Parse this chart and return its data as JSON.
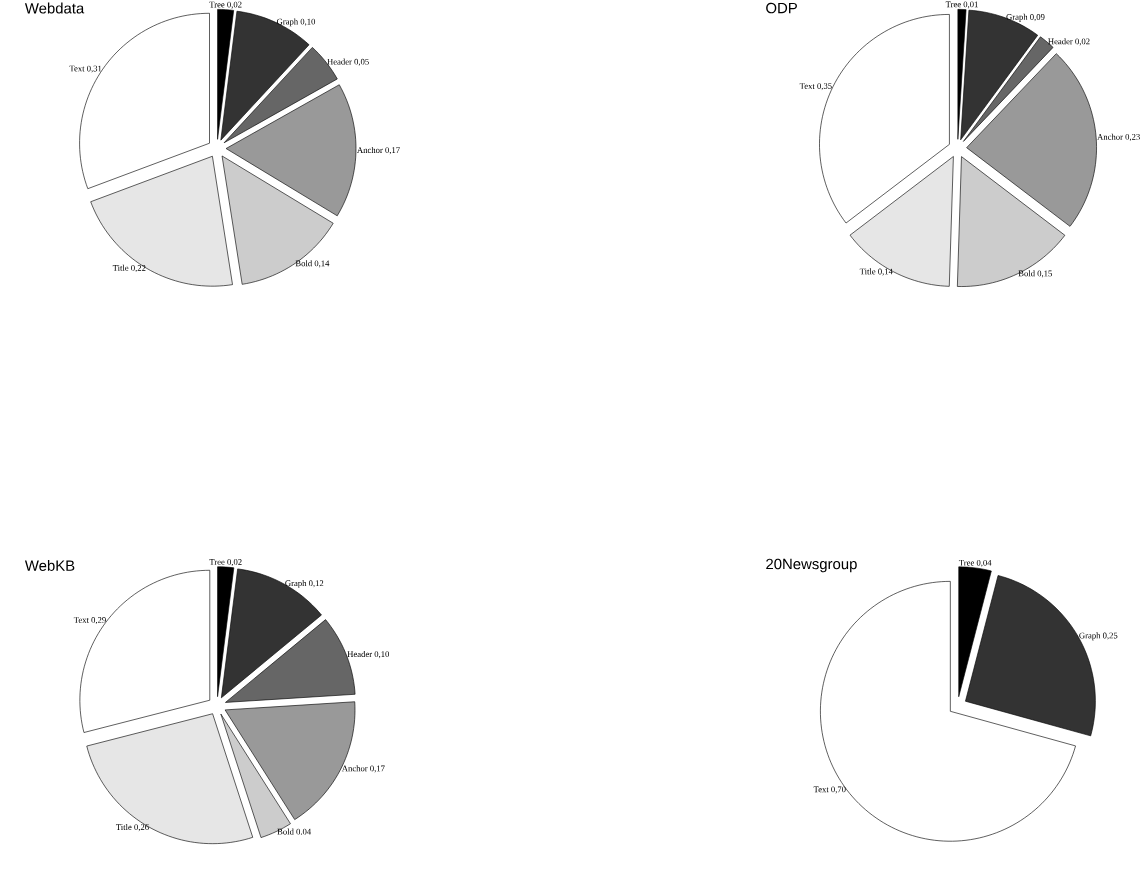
{
  "chart_data": [
    {
      "type": "pie",
      "title": "Webdata",
      "categories": [
        "Tree",
        "Graph",
        "Header",
        "Anchor",
        "Bold",
        "Title",
        "Text"
      ],
      "values": [
        0.02,
        0.1,
        0.05,
        0.17,
        0.14,
        0.22,
        0.31
      ],
      "value_labels": [
        "0,02",
        "0,10",
        "0,05",
        "0,17",
        "0,14",
        "0,22",
        "0,31"
      ],
      "colors": [
        "#000000",
        "#333333",
        "#666666",
        "#999999",
        "#cccccc",
        "#e6e6e6",
        "#ffffff"
      ]
    },
    {
      "type": "pie",
      "title": "ODP",
      "categories": [
        "Tree",
        "Graph",
        "Header",
        "Anchor",
        "Bold",
        "Title",
        "Text"
      ],
      "values": [
        0.01,
        0.09,
        0.02,
        0.23,
        0.15,
        0.14,
        0.35
      ],
      "value_labels": [
        "0,01",
        "0,09",
        "0,02",
        "0,23",
        "0,15",
        "0,14",
        "0,35"
      ],
      "colors": [
        "#000000",
        "#333333",
        "#666666",
        "#999999",
        "#cccccc",
        "#e6e6e6",
        "#ffffff"
      ]
    },
    {
      "type": "pie",
      "title": "WebKB",
      "categories": [
        "Tree",
        "Graph",
        "Header",
        "Anchor",
        "Bold",
        "Title",
        "Text"
      ],
      "values": [
        0.02,
        0.12,
        0.1,
        0.17,
        0.04,
        0.26,
        0.29
      ],
      "value_labels": [
        "0,02",
        "0,12",
        "0,10",
        "0,17",
        "0.04",
        "0,26",
        "0,29"
      ],
      "colors": [
        "#000000",
        "#333333",
        "#666666",
        "#999999",
        "#cccccc",
        "#e6e6e6",
        "#ffffff"
      ]
    },
    {
      "type": "pie",
      "title": "20Newsgroup",
      "categories": [
        "Tree",
        "Graph",
        "Text"
      ],
      "values": [
        0.04,
        0.25,
        0.7
      ],
      "value_labels": [
        "0,04",
        "0,25",
        "0,70"
      ],
      "colors": [
        "#000000",
        "#333333",
        "#ffffff"
      ]
    }
  ]
}
